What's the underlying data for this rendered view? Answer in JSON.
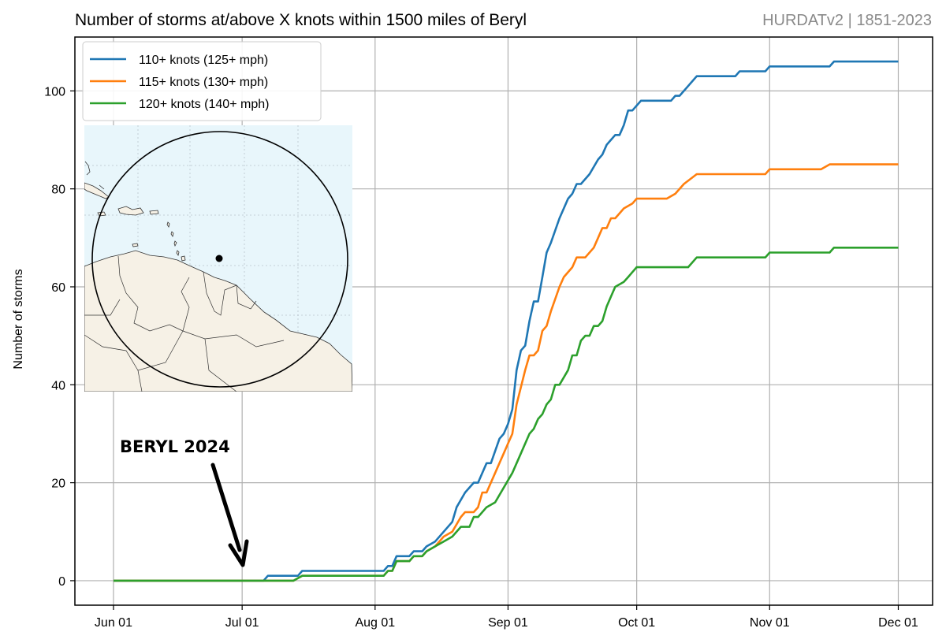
{
  "header": {
    "title": "Number of storms at/above X knots within 1500 miles of Beryl",
    "source": "HURDATv2 | 1851-2023"
  },
  "chart_data": {
    "type": "line",
    "title": "Number of storms at/above X knots within 1500 miles of Beryl",
    "xlabel": "",
    "ylabel": "Number of storms",
    "x_ticks": [
      "Jun 01",
      "Jul 01",
      "Aug 01",
      "Sep 01",
      "Oct 01",
      "Nov 01",
      "Dec 01"
    ],
    "y_ticks": [
      0,
      20,
      40,
      60,
      80,
      100
    ],
    "xlim": [
      "2024-05-23",
      "2024-12-09"
    ],
    "ylim": [
      -5,
      111
    ],
    "grid": true,
    "legend_position": "top-left",
    "series": [
      {
        "name": "110+ knots (125+ mph)",
        "color": "#1f77b4",
        "points": [
          [
            "2024-06-01",
            0
          ],
          [
            "2024-07-06",
            0
          ],
          [
            "2024-07-07",
            1
          ],
          [
            "2024-07-14",
            1
          ],
          [
            "2024-07-15",
            2
          ],
          [
            "2024-08-03",
            2
          ],
          [
            "2024-08-04",
            3
          ],
          [
            "2024-08-05",
            3
          ],
          [
            "2024-08-06",
            5
          ],
          [
            "2024-08-09",
            5
          ],
          [
            "2024-08-10",
            6
          ],
          [
            "2024-08-12",
            6
          ],
          [
            "2024-08-13",
            7
          ],
          [
            "2024-08-15",
            8
          ],
          [
            "2024-08-17",
            10
          ],
          [
            "2024-08-19",
            12
          ],
          [
            "2024-08-20",
            15
          ],
          [
            "2024-08-22",
            18
          ],
          [
            "2024-08-24",
            20
          ],
          [
            "2024-08-25",
            20
          ],
          [
            "2024-08-27",
            24
          ],
          [
            "2024-08-28",
            24
          ],
          [
            "2024-08-30",
            29
          ],
          [
            "2024-08-31",
            30
          ],
          [
            "2024-09-01",
            32
          ],
          [
            "2024-09-02",
            35
          ],
          [
            "2024-09-03",
            43
          ],
          [
            "2024-09-04",
            47
          ],
          [
            "2024-09-05",
            48
          ],
          [
            "2024-09-06",
            53
          ],
          [
            "2024-09-07",
            57
          ],
          [
            "2024-09-08",
            57
          ],
          [
            "2024-09-09",
            62
          ],
          [
            "2024-09-10",
            67
          ],
          [
            "2024-09-11",
            69
          ],
          [
            "2024-09-13",
            74
          ],
          [
            "2024-09-15",
            78
          ],
          [
            "2024-09-16",
            79
          ],
          [
            "2024-09-17",
            81
          ],
          [
            "2024-09-18",
            81
          ],
          [
            "2024-09-20",
            83
          ],
          [
            "2024-09-22",
            86
          ],
          [
            "2024-09-23",
            87
          ],
          [
            "2024-09-24",
            89
          ],
          [
            "2024-09-25",
            90
          ],
          [
            "2024-09-26",
            91
          ],
          [
            "2024-09-27",
            91
          ],
          [
            "2024-09-28",
            93
          ],
          [
            "2024-09-29",
            96
          ],
          [
            "2024-09-30",
            96
          ],
          [
            "2024-10-01",
            97
          ],
          [
            "2024-10-02",
            98
          ],
          [
            "2024-10-09",
            98
          ],
          [
            "2024-10-10",
            99
          ],
          [
            "2024-10-11",
            99
          ],
          [
            "2024-10-12",
            100
          ],
          [
            "2024-10-13",
            101
          ],
          [
            "2024-10-14",
            102
          ],
          [
            "2024-10-15",
            103
          ],
          [
            "2024-10-24",
            103
          ],
          [
            "2024-10-25",
            104
          ],
          [
            "2024-10-31",
            104
          ],
          [
            "2024-11-01",
            105
          ],
          [
            "2024-11-15",
            105
          ],
          [
            "2024-11-16",
            106
          ],
          [
            "2024-12-01",
            106
          ]
        ]
      },
      {
        "name": "115+ knots (130+ mph)",
        "color": "#ff7f0e",
        "points": [
          [
            "2024-06-01",
            0
          ],
          [
            "2024-07-13",
            0
          ],
          [
            "2024-07-15",
            1
          ],
          [
            "2024-08-03",
            1
          ],
          [
            "2024-08-04",
            2
          ],
          [
            "2024-08-05",
            2
          ],
          [
            "2024-08-06",
            4
          ],
          [
            "2024-08-09",
            4
          ],
          [
            "2024-08-10",
            5
          ],
          [
            "2024-08-12",
            5
          ],
          [
            "2024-08-13",
            6
          ],
          [
            "2024-08-15",
            7
          ],
          [
            "2024-08-17",
            9
          ],
          [
            "2024-08-19",
            10
          ],
          [
            "2024-08-21",
            13
          ],
          [
            "2024-08-22",
            14
          ],
          [
            "2024-08-24",
            14
          ],
          [
            "2024-08-25",
            15
          ],
          [
            "2024-08-26",
            18
          ],
          [
            "2024-08-27",
            18
          ],
          [
            "2024-08-29",
            22
          ],
          [
            "2024-08-31",
            26
          ],
          [
            "2024-09-01",
            28
          ],
          [
            "2024-09-02",
            30
          ],
          [
            "2024-09-03",
            36
          ],
          [
            "2024-09-05",
            43
          ],
          [
            "2024-09-06",
            46
          ],
          [
            "2024-09-07",
            46
          ],
          [
            "2024-09-08",
            47
          ],
          [
            "2024-09-09",
            51
          ],
          [
            "2024-09-10",
            52
          ],
          [
            "2024-09-11",
            55
          ],
          [
            "2024-09-13",
            60
          ],
          [
            "2024-09-14",
            62
          ],
          [
            "2024-09-16",
            64
          ],
          [
            "2024-09-17",
            66
          ],
          [
            "2024-09-19",
            66
          ],
          [
            "2024-09-21",
            68
          ],
          [
            "2024-09-22",
            70
          ],
          [
            "2024-09-23",
            72
          ],
          [
            "2024-09-24",
            72
          ],
          [
            "2024-09-25",
            74
          ],
          [
            "2024-09-26",
            74
          ],
          [
            "2024-09-27",
            75
          ],
          [
            "2024-09-28",
            76
          ],
          [
            "2024-09-30",
            77
          ],
          [
            "2024-10-01",
            78
          ],
          [
            "2024-10-08",
            78
          ],
          [
            "2024-10-10",
            79
          ],
          [
            "2024-10-12",
            81
          ],
          [
            "2024-10-15",
            83
          ],
          [
            "2024-10-31",
            83
          ],
          [
            "2024-11-01",
            84
          ],
          [
            "2024-11-13",
            84
          ],
          [
            "2024-11-15",
            85
          ],
          [
            "2024-12-01",
            85
          ]
        ]
      },
      {
        "name": "120+ knots (140+ mph)",
        "color": "#2ca02c",
        "points": [
          [
            "2024-06-01",
            0
          ],
          [
            "2024-07-13",
            0
          ],
          [
            "2024-07-15",
            1
          ],
          [
            "2024-08-03",
            1
          ],
          [
            "2024-08-04",
            2
          ],
          [
            "2024-08-05",
            2
          ],
          [
            "2024-08-06",
            4
          ],
          [
            "2024-08-09",
            4
          ],
          [
            "2024-08-10",
            5
          ],
          [
            "2024-08-12",
            5
          ],
          [
            "2024-08-13",
            6
          ],
          [
            "2024-08-15",
            7
          ],
          [
            "2024-08-17",
            8
          ],
          [
            "2024-08-19",
            9
          ],
          [
            "2024-08-21",
            11
          ],
          [
            "2024-08-23",
            11
          ],
          [
            "2024-08-24",
            13
          ],
          [
            "2024-08-25",
            13
          ],
          [
            "2024-08-27",
            15
          ],
          [
            "2024-08-29",
            16
          ],
          [
            "2024-08-31",
            19
          ],
          [
            "2024-09-02",
            22
          ],
          [
            "2024-09-04",
            26
          ],
          [
            "2024-09-06",
            30
          ],
          [
            "2024-09-07",
            31
          ],
          [
            "2024-09-08",
            33
          ],
          [
            "2024-09-09",
            34
          ],
          [
            "2024-09-10",
            36
          ],
          [
            "2024-09-11",
            37
          ],
          [
            "2024-09-12",
            40
          ],
          [
            "2024-09-13",
            40
          ],
          [
            "2024-09-15",
            43
          ],
          [
            "2024-09-16",
            46
          ],
          [
            "2024-09-17",
            46
          ],
          [
            "2024-09-18",
            49
          ],
          [
            "2024-09-19",
            50
          ],
          [
            "2024-09-20",
            50
          ],
          [
            "2024-09-21",
            52
          ],
          [
            "2024-09-22",
            52
          ],
          [
            "2024-09-23",
            53
          ],
          [
            "2024-09-24",
            56
          ],
          [
            "2024-09-25",
            58
          ],
          [
            "2024-09-26",
            60
          ],
          [
            "2024-09-28",
            61
          ],
          [
            "2024-09-29",
            62
          ],
          [
            "2024-09-30",
            63
          ],
          [
            "2024-10-01",
            64
          ],
          [
            "2024-10-13",
            64
          ],
          [
            "2024-10-15",
            66
          ],
          [
            "2024-10-31",
            66
          ],
          [
            "2024-11-01",
            67
          ],
          [
            "2024-11-15",
            67
          ],
          [
            "2024-11-16",
            68
          ],
          [
            "2024-12-01",
            68
          ]
        ]
      }
    ],
    "annotations": [
      {
        "text": "BERYL 2024",
        "arrow_to": [
          "2024-07-01",
          0
        ]
      }
    ]
  },
  "inset_map": {
    "description_icon": "map-inset",
    "ocean_color": "#e8f6fb",
    "land_color": "#f6f1e6",
    "radius_label": "1500 miles"
  }
}
